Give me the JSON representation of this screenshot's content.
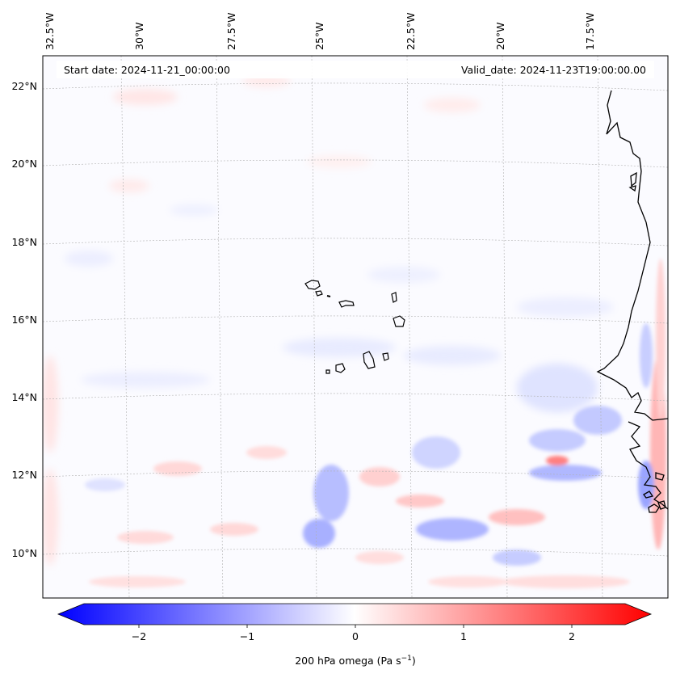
{
  "map": {
    "start_date": "Start date: 2024-11-21_00:00:00",
    "valid_date": "Valid_date: 2024-11-23T19:00:00.00",
    "lon_labels": [
      "32.5°W",
      "30°W",
      "27.5°W",
      "25°W",
      "22.5°W",
      "20°W",
      "17.5°W"
    ],
    "lat_labels": [
      "22°N",
      "20°N",
      "18°N",
      "16°N",
      "14°N",
      "12°N",
      "10°N"
    ],
    "grid": true,
    "features": [
      "Cape Verde islands",
      "West African coastline"
    ],
    "colors": {
      "negative": "#0000ff",
      "zero": "#ffffff",
      "positive": "#ff0000",
      "coast": "#000000",
      "grid": "#b0b0b0"
    }
  },
  "colorbar": {
    "ticks": [
      "−2",
      "−1",
      "0",
      "1",
      "2"
    ],
    "label": "200 hPa omega (Pa s",
    "label_sup": "−1",
    "label_end": ")",
    "range": [
      -2.7,
      2.7
    ],
    "extend": "both",
    "colormap": "bwr"
  }
}
